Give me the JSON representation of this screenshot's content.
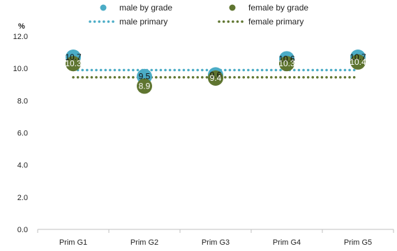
{
  "chart_data": {
    "type": "scatter",
    "categories": [
      "Prim G1",
      "Prim G2",
      "Prim G3",
      "Prim G4",
      "Prim G5"
    ],
    "series": [
      {
        "name": "male by grade",
        "values": [
          10.7,
          9.5,
          9.6,
          10.6,
          10.7
        ],
        "labels": [
          "10.7",
          "9.5",
          "9.6",
          "10.6",
          "10.7"
        ],
        "color": "#4bacc6",
        "style": "marker"
      },
      {
        "name": "female by grade",
        "values": [
          10.3,
          8.9,
          9.4,
          10.3,
          10.4
        ],
        "labels": [
          "10.3",
          "8.9",
          "9.4",
          "10.3",
          "10.4"
        ],
        "color": "#5f7530",
        "style": "marker"
      },
      {
        "name": "male primary",
        "value": 9.9,
        "color": "#4bacc6",
        "style": "dotted-line"
      },
      {
        "name": "female primary",
        "value": 9.45,
        "color": "#5f7530",
        "style": "dotted-line"
      }
    ],
    "ylabel": "%",
    "ylim": [
      0,
      12
    ],
    "yticks": [
      "0.0",
      "2.0",
      "4.0",
      "6.0",
      "8.0",
      "10.0",
      "12.0"
    ],
    "grid": false,
    "legend_position": "top"
  }
}
